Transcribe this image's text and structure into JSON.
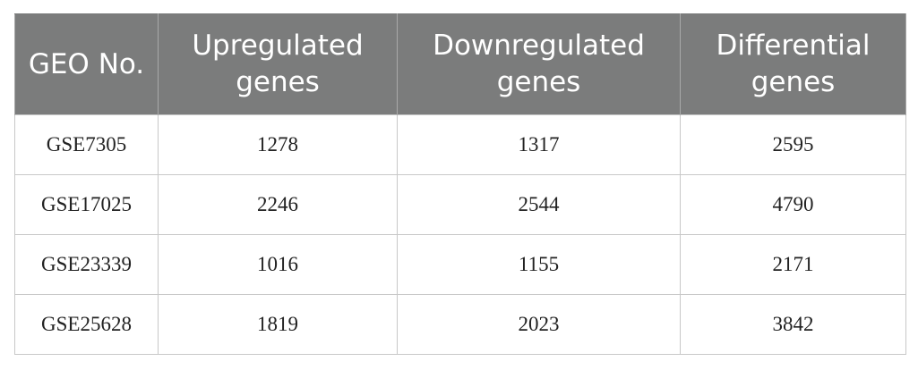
{
  "table": {
    "headers": [
      "GEO No.",
      "Upregulated genes",
      "Downregulated genes",
      "Differential genes"
    ],
    "rows": [
      [
        "GSE7305",
        "1278",
        "1317",
        "2595"
      ],
      [
        "GSE17025",
        "2246",
        "2544",
        "4790"
      ],
      [
        "GSE23339",
        "1016",
        "1155",
        "2171"
      ],
      [
        "GSE25628",
        "1819",
        "2023",
        "3842"
      ]
    ]
  },
  "colors": {
    "header_background": "#7b7c7c",
    "header_text": "#ffffff",
    "grid_line": "#c8c8c8"
  }
}
